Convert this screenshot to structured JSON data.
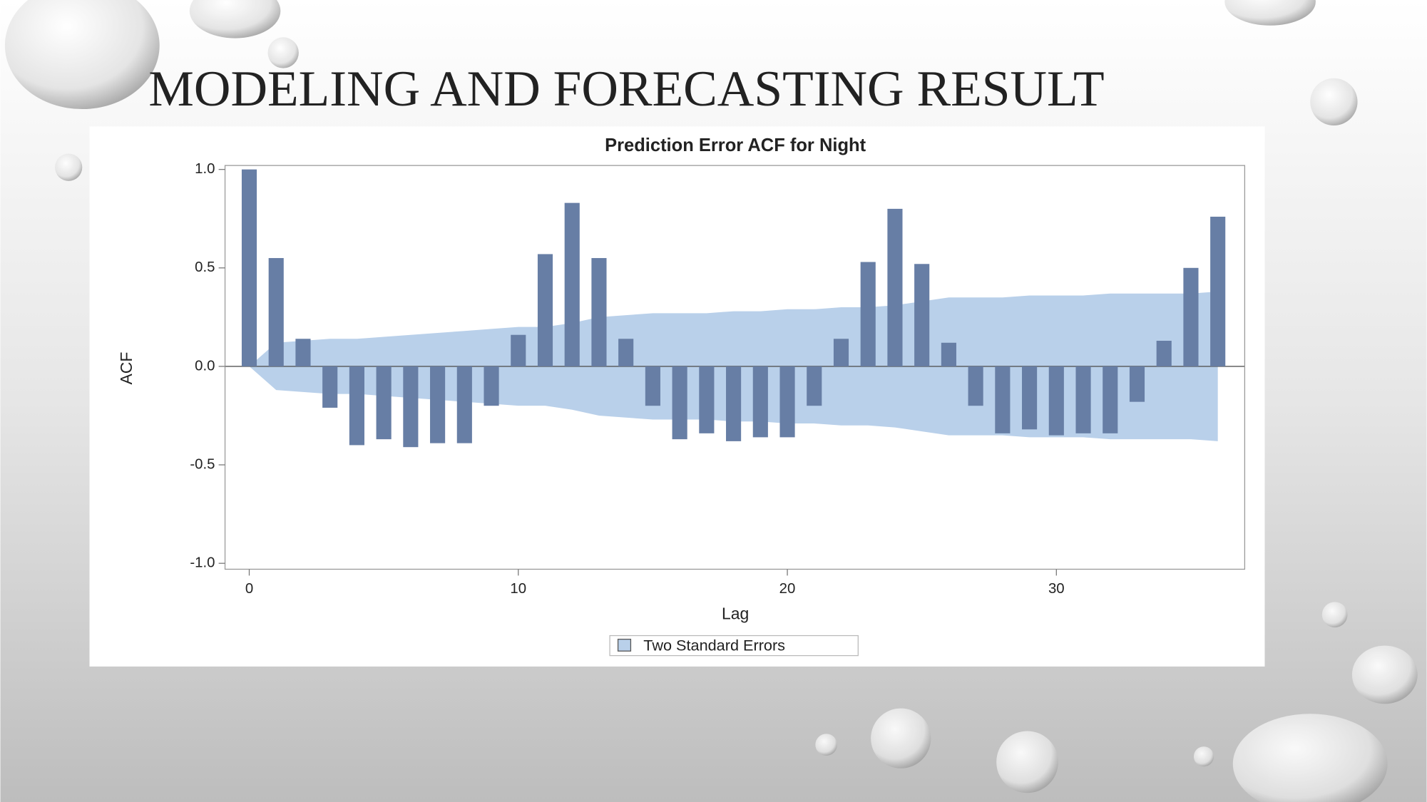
{
  "slide_title": "MODELING AND FORECASTING RESULT",
  "chart_data": {
    "type": "bar",
    "title": "Prediction Error ACF for Night",
    "x_label": "Lag",
    "y_label": "ACF",
    "x": [
      0,
      1,
      2,
      3,
      4,
      5,
      6,
      7,
      8,
      9,
      10,
      11,
      12,
      13,
      14,
      15,
      16,
      17,
      18,
      19,
      20,
      21,
      22,
      23,
      24,
      25,
      26,
      27,
      28,
      29,
      30,
      31,
      32,
      33,
      34,
      35,
      36
    ],
    "values": [
      1.0,
      0.55,
      0.14,
      -0.21,
      -0.4,
      -0.37,
      -0.41,
      -0.39,
      -0.39,
      -0.2,
      0.16,
      0.57,
      0.83,
      0.55,
      0.14,
      -0.2,
      -0.37,
      -0.34,
      -0.38,
      -0.36,
      -0.36,
      -0.2,
      0.14,
      0.53,
      0.8,
      0.52,
      0.12,
      -0.2,
      -0.34,
      -0.32,
      -0.35,
      -0.34,
      -0.34,
      -0.18,
      0.13,
      0.5,
      0.76
    ],
    "color": "#677ea5",
    "band": {
      "name": "Two Standard Errors",
      "color": "#b9d0ea",
      "upper": [
        0,
        0.12,
        0.13,
        0.14,
        0.14,
        0.15,
        0.16,
        0.17,
        0.18,
        0.19,
        0.2,
        0.2,
        0.22,
        0.25,
        0.26,
        0.27,
        0.27,
        0.27,
        0.28,
        0.28,
        0.29,
        0.29,
        0.3,
        0.3,
        0.31,
        0.33,
        0.35,
        0.35,
        0.35,
        0.36,
        0.36,
        0.36,
        0.37,
        0.37,
        0.37,
        0.37,
        0.38
      ],
      "lower": [
        0,
        -0.12,
        -0.13,
        -0.14,
        -0.14,
        -0.15,
        -0.16,
        -0.17,
        -0.18,
        -0.19,
        -0.2,
        -0.2,
        -0.22,
        -0.25,
        -0.26,
        -0.27,
        -0.27,
        -0.27,
        -0.28,
        -0.28,
        -0.29,
        -0.29,
        -0.3,
        -0.3,
        -0.31,
        -0.33,
        -0.35,
        -0.35,
        -0.35,
        -0.36,
        -0.36,
        -0.36,
        -0.37,
        -0.37,
        -0.37,
        -0.37,
        -0.38
      ]
    },
    "xlim": [
      -0.9,
      37
    ],
    "ylim": [
      -1.03,
      1.02
    ],
    "xticks": [
      0,
      10,
      20,
      30
    ],
    "yticks": [
      {
        "value": -1,
        "label": "-1.0"
      },
      -0.5,
      {
        "value": 0,
        "label": "0.0"
      },
      0.5,
      {
        "value": 1,
        "label": "1.0"
      }
    ],
    "legend": "bottom"
  }
}
